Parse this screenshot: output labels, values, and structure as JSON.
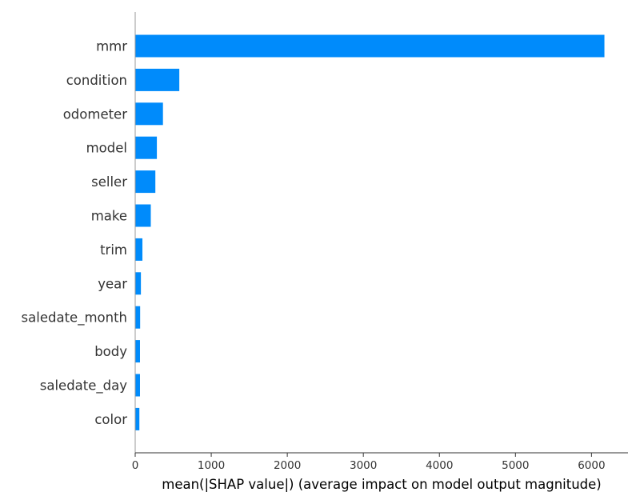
{
  "chart_data": {
    "type": "bar",
    "orientation": "horizontal",
    "categories": [
      "mmr",
      "condition",
      "odometer",
      "model",
      "seller",
      "make",
      "trim",
      "year",
      "saledate_month",
      "body",
      "saledate_day",
      "color"
    ],
    "values": [
      6170,
      580,
      365,
      285,
      265,
      205,
      95,
      75,
      65,
      63,
      63,
      55
    ],
    "title": "",
    "xlabel": "mean(|SHAP value|) (average impact on model output magnitude)",
    "ylabel": "",
    "xlim": [
      0,
      6480
    ],
    "xticks": [
      0,
      1000,
      2000,
      3000,
      4000,
      5000,
      6000
    ],
    "grid": false,
    "legend": "none",
    "bar_color": "#008bfb"
  }
}
